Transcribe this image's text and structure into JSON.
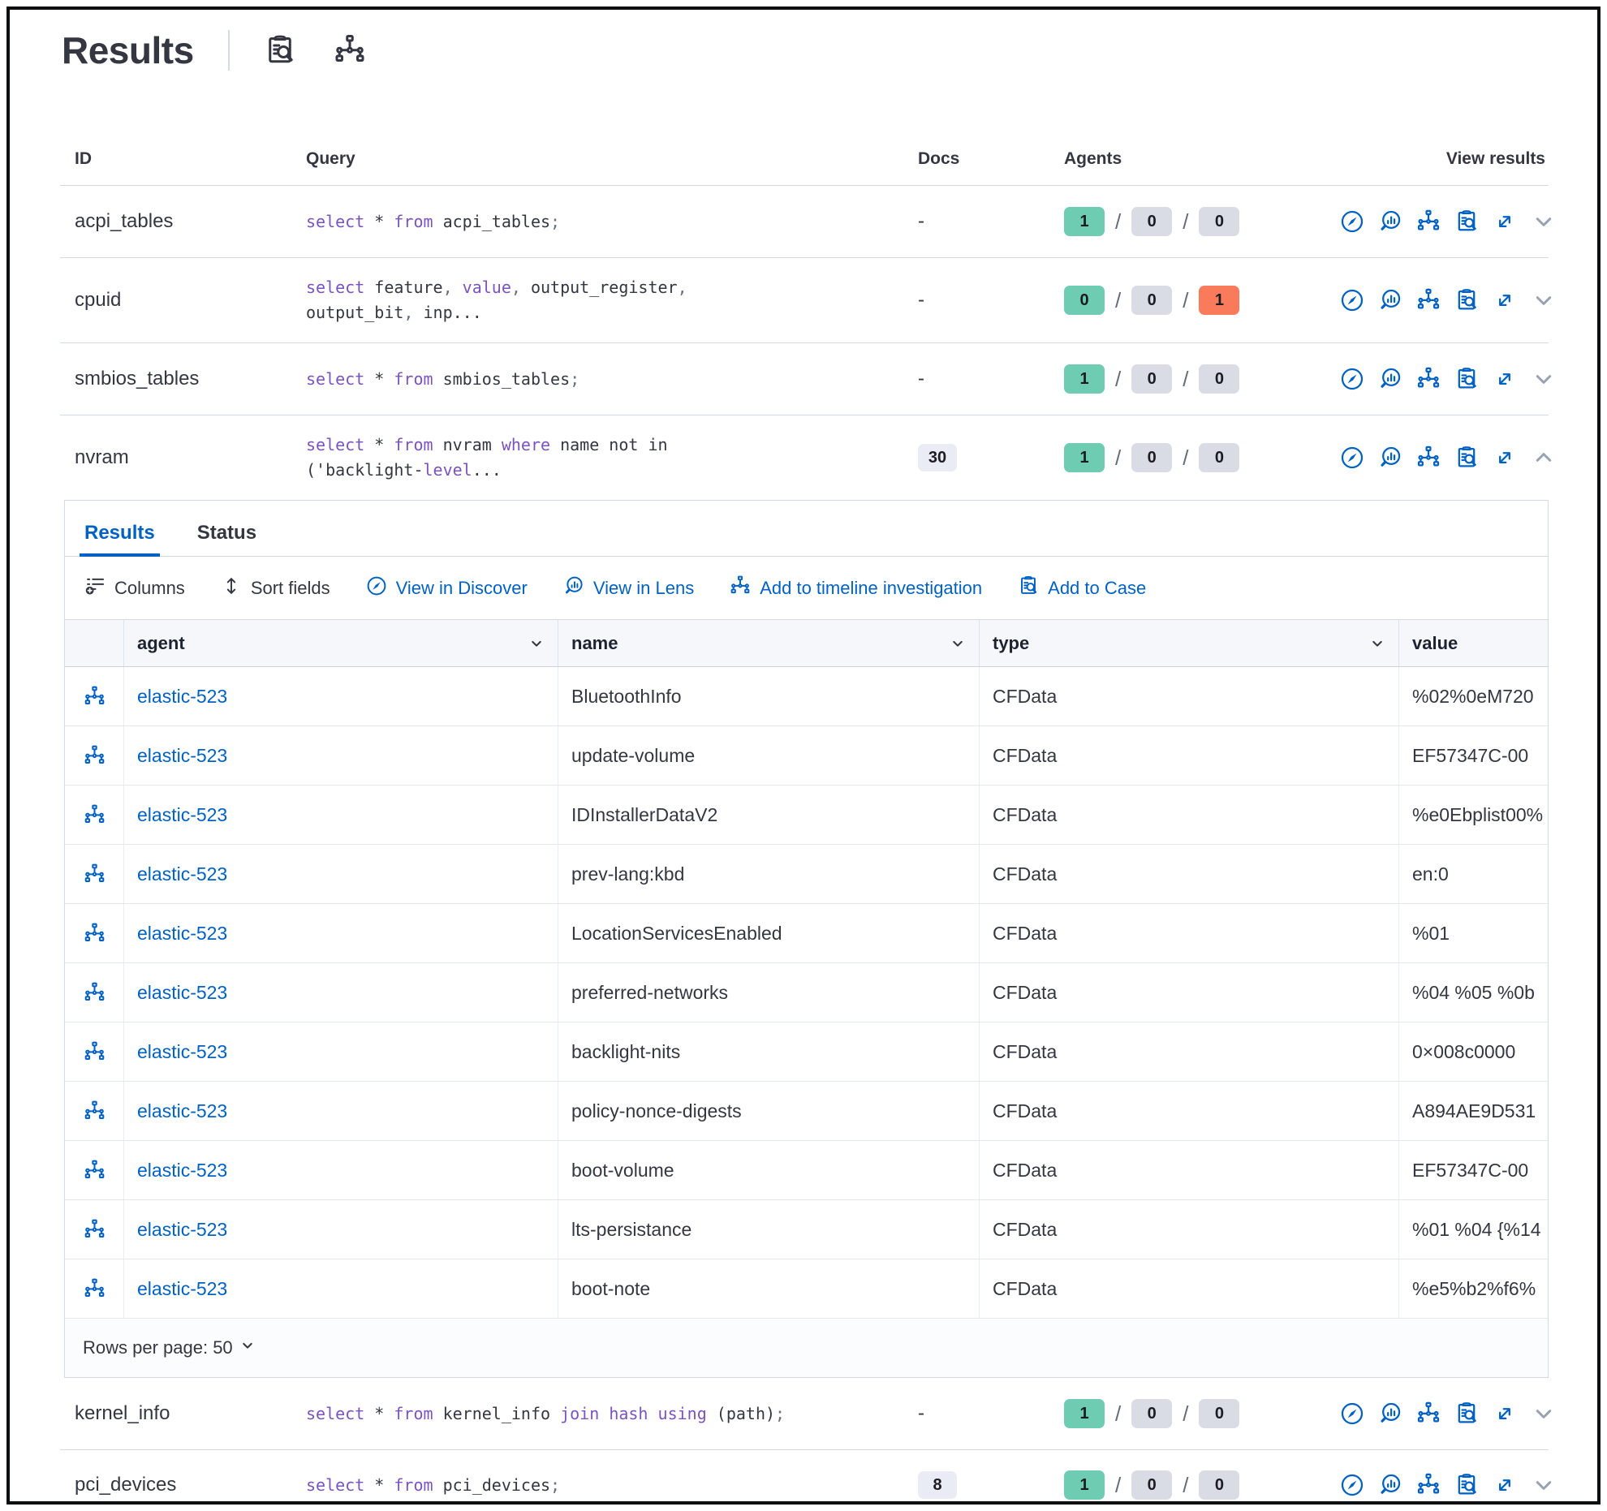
{
  "page": {
    "title": "Results"
  },
  "header": {
    "icons": [
      "inspect",
      "timeline"
    ]
  },
  "results_table": {
    "columns": [
      "ID",
      "Query",
      "Docs",
      "Agents",
      "View results"
    ],
    "view_result_icons": [
      "discover",
      "lens",
      "timeline",
      "case",
      "open"
    ],
    "rows": [
      {
        "id": "acpi_tables",
        "query": [
          [
            "k",
            "select"
          ],
          [
            "t",
            " * "
          ],
          [
            "k",
            "from"
          ],
          [
            "t",
            " acpi_tables"
          ],
          [
            "p",
            ";"
          ]
        ],
        "docs": {
          "text": "-",
          "badge": false
        },
        "agents": [
          {
            "n": "1",
            "c": "success"
          },
          {
            "n": "0",
            "c": "default"
          },
          {
            "n": "0",
            "c": "default"
          }
        ],
        "expanded": false
      },
      {
        "id": "cpuid",
        "query": [
          [
            "k",
            "select"
          ],
          [
            "t",
            " feature"
          ],
          [
            "p",
            ","
          ],
          [
            "t",
            " "
          ],
          [
            "k",
            "value"
          ],
          [
            "p",
            ","
          ],
          [
            "t",
            " output_register"
          ],
          [
            "p",
            ","
          ],
          [
            "t",
            "\noutput_bit"
          ],
          [
            "p",
            ","
          ],
          [
            "t",
            " inp..."
          ]
        ],
        "docs": {
          "text": "-",
          "badge": false
        },
        "agents": [
          {
            "n": "0",
            "c": "success"
          },
          {
            "n": "0",
            "c": "default"
          },
          {
            "n": "1",
            "c": "danger"
          }
        ],
        "expanded": false
      },
      {
        "id": "smbios_tables",
        "query": [
          [
            "k",
            "select"
          ],
          [
            "t",
            " * "
          ],
          [
            "k",
            "from"
          ],
          [
            "t",
            " smbios_tables"
          ],
          [
            "p",
            ";"
          ]
        ],
        "docs": {
          "text": "-",
          "badge": false
        },
        "agents": [
          {
            "n": "1",
            "c": "success"
          },
          {
            "n": "0",
            "c": "default"
          },
          {
            "n": "0",
            "c": "default"
          }
        ],
        "expanded": false
      },
      {
        "id": "nvram",
        "query": [
          [
            "k",
            "select"
          ],
          [
            "t",
            " * "
          ],
          [
            "k",
            "from"
          ],
          [
            "t",
            " nvram "
          ],
          [
            "k",
            "where"
          ],
          [
            "t",
            " name not in\n('backlight-"
          ],
          [
            "k",
            "level"
          ],
          [
            "t",
            "..."
          ]
        ],
        "docs": {
          "text": "30",
          "badge": true
        },
        "agents": [
          {
            "n": "1",
            "c": "success"
          },
          {
            "n": "0",
            "c": "default"
          },
          {
            "n": "0",
            "c": "default"
          }
        ],
        "expanded": true
      },
      {
        "id": "kernel_info",
        "query": [
          [
            "k",
            "select"
          ],
          [
            "t",
            " * "
          ],
          [
            "k",
            "from"
          ],
          [
            "t",
            " kernel_info "
          ],
          [
            "k",
            "join"
          ],
          [
            "t",
            " "
          ],
          [
            "k",
            "hash"
          ],
          [
            "t",
            " "
          ],
          [
            "k",
            "using"
          ],
          [
            "t",
            " (path)"
          ],
          [
            "p",
            ";"
          ]
        ],
        "docs": {
          "text": "-",
          "badge": false
        },
        "agents": [
          {
            "n": "1",
            "c": "success"
          },
          {
            "n": "0",
            "c": "default"
          },
          {
            "n": "0",
            "c": "default"
          }
        ],
        "expanded": false
      },
      {
        "id": "pci_devices",
        "query": [
          [
            "k",
            "select"
          ],
          [
            "t",
            " * "
          ],
          [
            "k",
            "from"
          ],
          [
            "t",
            " pci_devices"
          ],
          [
            "p",
            ";"
          ]
        ],
        "docs": {
          "text": "8",
          "badge": true
        },
        "agents": [
          {
            "n": "1",
            "c": "success"
          },
          {
            "n": "0",
            "c": "default"
          },
          {
            "n": "0",
            "c": "default"
          }
        ],
        "expanded": false
      }
    ]
  },
  "panel": {
    "tabs": [
      {
        "label": "Results",
        "active": true
      },
      {
        "label": "Status",
        "active": false
      }
    ],
    "toolbar": [
      {
        "label": "Columns",
        "icon": "columns",
        "variant": "dark"
      },
      {
        "label": "Sort fields",
        "icon": "sort",
        "variant": "dark"
      },
      {
        "label": "View in Discover",
        "icon": "discover",
        "variant": "link"
      },
      {
        "label": "View in Lens",
        "icon": "lens",
        "variant": "link"
      },
      {
        "label": "Add to timeline investigation",
        "icon": "timeline",
        "variant": "link"
      },
      {
        "label": "Add to Case",
        "icon": "case",
        "variant": "link"
      }
    ],
    "grid": {
      "columns": [
        {
          "label": "agent",
          "sortable": true
        },
        {
          "label": "name",
          "sortable": true
        },
        {
          "label": "type",
          "sortable": true
        },
        {
          "label": "value",
          "sortable": false
        }
      ],
      "rows": [
        {
          "agent": "elastic-523",
          "name": "BluetoothInfo",
          "type": "CFData",
          "value": "%02%0eM720"
        },
        {
          "agent": "elastic-523",
          "name": "update-volume",
          "type": "CFData",
          "value": "EF57347C-00"
        },
        {
          "agent": "elastic-523",
          "name": "IDInstallerDataV2",
          "type": "CFData",
          "value": "%e0Ebplist00%"
        },
        {
          "agent": "elastic-523",
          "name": "prev-lang:kbd",
          "type": "CFData",
          "value": "en:0"
        },
        {
          "agent": "elastic-523",
          "name": "LocationServicesEnabled",
          "type": "CFData",
          "value": "%01"
        },
        {
          "agent": "elastic-523",
          "name": "preferred-networks",
          "type": "CFData",
          "value": "%04 %05 %0b"
        },
        {
          "agent": "elastic-523",
          "name": "backlight-nits",
          "type": "CFData",
          "value": "0×008c0000"
        },
        {
          "agent": "elastic-523",
          "name": "policy-nonce-digests",
          "type": "CFData",
          "value": "A894AE9D531"
        },
        {
          "agent": "elastic-523",
          "name": "boot-volume",
          "type": "CFData",
          "value": "EF57347C-00"
        },
        {
          "agent": "elastic-523",
          "name": "lts-persistance",
          "type": "CFData",
          "value": "%01 %04 {%14"
        },
        {
          "agent": "elastic-523",
          "name": "boot-note",
          "type": "CFData",
          "value": "%e5%b2%f6%"
        }
      ]
    },
    "footer": {
      "rows_per_page": "Rows per page: 50"
    }
  }
}
